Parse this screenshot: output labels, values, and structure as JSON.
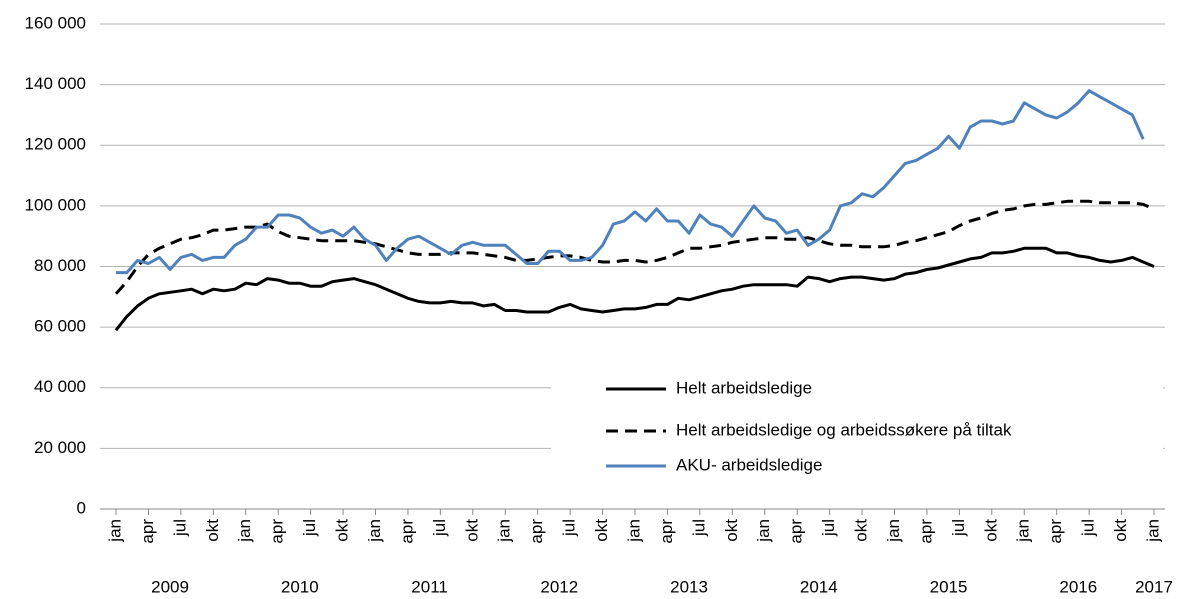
{
  "chart_data": {
    "type": "line",
    "categories": [
      "jan",
      null,
      null,
      "apr",
      null,
      null,
      "jul",
      null,
      null,
      "okt",
      null,
      null,
      "jan",
      null,
      null,
      "apr",
      null,
      null,
      "jul",
      null,
      null,
      "okt",
      null,
      null,
      "jan",
      null,
      null,
      "apr",
      null,
      null,
      "jul",
      null,
      null,
      "okt",
      null,
      null,
      "jan",
      null,
      null,
      "apr",
      null,
      null,
      "jul",
      null,
      null,
      "okt",
      null,
      null,
      "jan",
      null,
      null,
      "apr",
      null,
      null,
      "jul",
      null,
      null,
      "okt",
      null,
      null,
      "jan",
      null,
      null,
      "apr",
      null,
      null,
      "jul",
      null,
      null,
      "okt",
      null,
      null,
      "jan",
      null,
      null,
      "apr",
      null,
      null,
      "jul",
      null,
      null,
      "okt",
      null,
      null,
      "jan",
      null,
      null,
      "apr",
      null,
      null,
      "jul",
      null,
      null,
      "okt",
      null,
      null,
      "jan"
    ],
    "years": [
      "2009",
      "2010",
      "2011",
      "2012",
      "2013",
      "2014",
      "2015",
      "2016",
      "2017"
    ],
    "ylim": [
      0,
      160000
    ],
    "yticks": [
      0,
      {
        "value": 20000,
        "label": "20 000"
      },
      {
        "value": 40000,
        "label": "40 000"
      },
      {
        "value": 60000,
        "label": "60 000"
      },
      {
        "value": 80000,
        "label": "80 000"
      },
      {
        "value": 100000,
        "label": "100 000"
      },
      {
        "value": 120000,
        "label": "120 000"
      },
      {
        "value": 140000,
        "label": "140 000"
      },
      {
        "value": 160000,
        "label": "160 000"
      }
    ],
    "grid": true,
    "series": [
      {
        "name": "Helt arbeidsledige",
        "color": "#000000",
        "style": "solid",
        "values": [
          59000,
          63500,
          67000,
          69500,
          71000,
          71500,
          72000,
          72500,
          71000,
          72500,
          72000,
          72500,
          74500,
          74000,
          76000,
          75500,
          74500,
          74500,
          73500,
          73500,
          75000,
          75500,
          76000,
          75000,
          74000,
          72500,
          71000,
          69500,
          68500,
          68000,
          68000,
          68500,
          68000,
          68000,
          67000,
          67500,
          65500,
          65500,
          65000,
          65000,
          65000,
          66500,
          67500,
          66000,
          65500,
          65000,
          65500,
          66000,
          66000,
          66500,
          67500,
          67500,
          69500,
          69000,
          70000,
          71000,
          72000,
          72500,
          73500,
          74000,
          74000,
          74000,
          74000,
          73500,
          76500,
          76000,
          75000,
          76000,
          76500,
          76500,
          76000,
          75500,
          76000,
          77500,
          78000,
          79000,
          79500,
          80500,
          81500,
          82500,
          83000,
          84500,
          84500,
          85000,
          86000,
          86000,
          86000,
          84500,
          84500,
          83500,
          83000,
          82000,
          81500,
          82000,
          83000,
          81500,
          80000
        ]
      },
      {
        "name": "Helt arbeidsledige og arbeidssøkere på tiltak",
        "color": "#000000",
        "style": "dashed",
        "values": [
          71000,
          75000,
          80000,
          84000,
          86000,
          87500,
          89000,
          89500,
          90500,
          92000,
          92000,
          92500,
          93000,
          93000,
          94000,
          91500,
          90000,
          89500,
          89000,
          88500,
          88500,
          88500,
          88500,
          88000,
          87500,
          86500,
          85500,
          84500,
          84000,
          84000,
          84000,
          84500,
          84500,
          84500,
          84000,
          83500,
          83000,
          82000,
          82000,
          82500,
          83000,
          83500,
          83500,
          83000,
          82000,
          81500,
          81500,
          82000,
          82000,
          81500,
          82000,
          83000,
          84500,
          86000,
          86000,
          86500,
          87000,
          88000,
          88500,
          89000,
          89500,
          89500,
          89000,
          89000,
          89500,
          88500,
          87500,
          87000,
          87000,
          86500,
          86500,
          86500,
          87000,
          88000,
          88500,
          89500,
          90500,
          91500,
          93500,
          95000,
          96000,
          97500,
          98500,
          99000,
          100000,
          100500,
          100500,
          101000,
          101500,
          101500,
          101500,
          101000,
          101000,
          101000,
          101000,
          100500,
          99000
        ]
      },
      {
        "name": "AKU- arbeidsledige",
        "color": "#4f81bd",
        "style": "solid",
        "values": [
          78000,
          78000,
          82000,
          81000,
          83000,
          79000,
          83000,
          84000,
          82000,
          83000,
          83000,
          87000,
          89000,
          93000,
          93000,
          97000,
          97000,
          96000,
          93000,
          91000,
          92000,
          90000,
          93000,
          89000,
          87000,
          82000,
          86000,
          89000,
          90000,
          88000,
          86000,
          84000,
          87000,
          88000,
          87000,
          87000,
          87000,
          84000,
          81000,
          81000,
          85000,
          85000,
          82000,
          82000,
          83000,
          87000,
          94000,
          95000,
          98000,
          95000,
          99000,
          95000,
          95000,
          91000,
          97000,
          94000,
          93000,
          90000,
          95000,
          100000,
          96000,
          95000,
          91000,
          92000,
          87000,
          89000,
          92000,
          100000,
          101000,
          104000,
          103000,
          106000,
          110000,
          114000,
          115000,
          117000,
          119000,
          123000,
          119000,
          126000,
          128000,
          128000,
          127000,
          128000,
          134000,
          132000,
          130000,
          129000,
          131000,
          134000,
          138000,
          136000,
          134000,
          132000,
          130000,
          122000,
          null
        ]
      }
    ]
  }
}
